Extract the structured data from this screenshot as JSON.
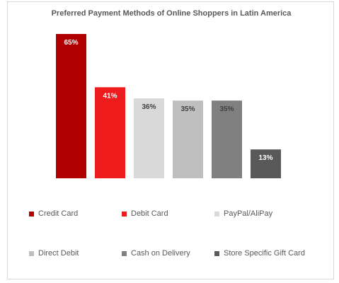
{
  "chart_data": {
    "type": "bar",
    "title": "Preferred Payment Methods of Online Shoppers in Latin America",
    "categories": [
      "Credit Card",
      "Debit Card",
      "PayPal/AliPay",
      "Direct Debit",
      "Cash on Delivery",
      "Store Specific Gift Card"
    ],
    "values": [
      65,
      41,
      36,
      35,
      35,
      13
    ],
    "data_labels": [
      "65%",
      "41%",
      "36%",
      "35%",
      "35%",
      "13%"
    ],
    "colors": [
      "#b00000",
      "#ee1c1c",
      "#d9d9d9",
      "#bfbfbf",
      "#808080",
      "#595959"
    ],
    "label_colors": [
      "#ffffff",
      "#ffffff",
      "#404040",
      "#404040",
      "#404040",
      "#ffffff"
    ],
    "ylim": [
      0,
      65
    ],
    "grid": false,
    "legend_position": "bottom",
    "xlabel": "",
    "ylabel": ""
  }
}
